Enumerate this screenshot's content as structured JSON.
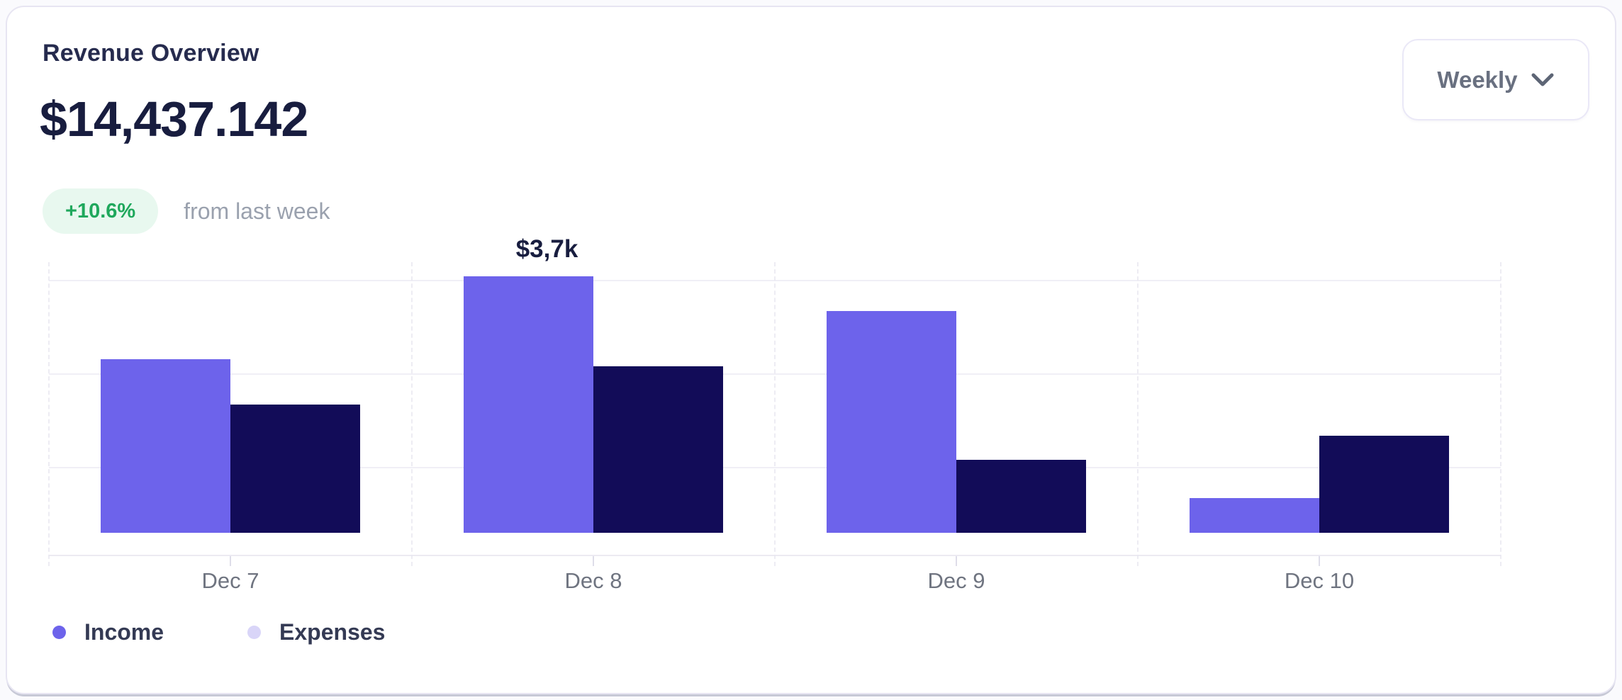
{
  "header": {
    "title": "Revenue Overview",
    "total_amount": "$14,437.142",
    "change_badge": "+10.6%",
    "change_caption": "from last week",
    "period_selector_label": "Weekly",
    "period_selector_icon": "chevron-down-icon"
  },
  "colors": {
    "income_bar": "#6d63eb",
    "expenses_bar": "#120c58",
    "income_legend_dot": "#6d63eb",
    "expenses_legend_dot": "#d9d5f8",
    "badge_text": "#1fa85c",
    "badge_background": "#e8f8ef",
    "title_text": "#262b4e",
    "amount_text": "#181d3f",
    "muted_text": "#9aa1ae",
    "axis_label_text": "#6f7480",
    "card_border": "#e7e5f2",
    "grid_line": "#f0eff6"
  },
  "chart_data": {
    "type": "bar",
    "title": "Revenue Overview",
    "categories": [
      "Dec 7",
      "Dec 8",
      "Dec 9",
      "Dec 10"
    ],
    "series": [
      {
        "name": "Income",
        "values": [
          2500,
          3700,
          3200,
          500
        ]
      },
      {
        "name": "Expenses",
        "values": [
          1850,
          2400,
          1050,
          1400
        ]
      }
    ],
    "values_are_estimates": true,
    "value_format": "USD thousands shown as $N,Nk",
    "ylim": [
      0,
      3700
    ],
    "grid": true,
    "bar_label": {
      "text": "$3,7k",
      "category": "Dec 8",
      "series": "Income"
    },
    "legend_entries": [
      "Income",
      "Expenses"
    ],
    "legend_position": "bottom-left",
    "xlabel": "",
    "ylabel": ""
  }
}
